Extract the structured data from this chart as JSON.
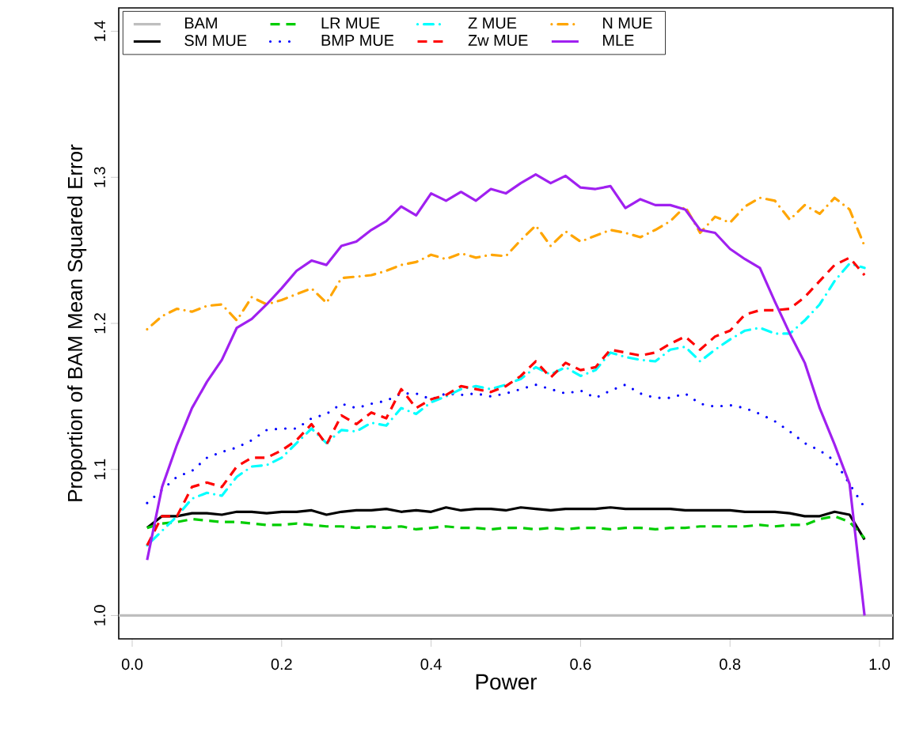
{
  "chart_data": {
    "type": "line",
    "xlabel": "Power",
    "ylabel": "Proportion of BAM Mean Squared Error",
    "x": [
      0.02,
      0.04,
      0.06,
      0.08,
      0.1,
      0.12,
      0.14,
      0.16,
      0.18,
      0.2,
      0.22,
      0.24,
      0.26,
      0.28,
      0.3,
      0.32,
      0.34,
      0.36,
      0.38,
      0.4,
      0.42,
      0.44,
      0.46,
      0.48,
      0.5,
      0.52,
      0.54,
      0.56,
      0.58,
      0.6,
      0.62,
      0.64,
      0.66,
      0.68,
      0.7,
      0.72,
      0.74,
      0.76,
      0.78,
      0.8,
      0.82,
      0.84,
      0.86,
      0.88,
      0.9,
      0.92,
      0.94,
      0.96,
      0.98
    ],
    "xlim": [
      -0.018,
      1.018
    ],
    "ylim": [
      0.984,
      1.416
    ],
    "xticks": [
      {
        "value": 0,
        "label": "0.0"
      },
      {
        "value": 0.2,
        "label": "0.2"
      },
      {
        "value": 0.4,
        "label": "0.4"
      },
      {
        "value": 0.6,
        "label": "0.6"
      },
      {
        "value": 0.8,
        "label": "0.8"
      },
      {
        "value": 1,
        "label": "1.0"
      }
    ],
    "yticks": [
      {
        "value": 1,
        "label": "1.0"
      },
      {
        "value": 1.1,
        "label": "1.1"
      },
      {
        "value": 1.2,
        "label": "1.2"
      },
      {
        "value": 1.3,
        "label": "1.3"
      },
      {
        "value": 1.4,
        "label": "1.4"
      }
    ],
    "grid": false,
    "legend": "top left",
    "series": [
      {
        "name": "BAM",
        "color": "#bebebe",
        "line_style": "solid",
        "x": [
          -0.018,
          1.018
        ],
        "values": [
          1.0,
          1.0
        ]
      },
      {
        "name": "SM MUE",
        "color": "#000000",
        "line_style": "solid",
        "values": [
          1.06,
          1.068,
          1.068,
          1.07,
          1.07,
          1.069,
          1.071,
          1.071,
          1.07,
          1.071,
          1.071,
          1.072,
          1.069,
          1.071,
          1.072,
          1.072,
          1.073,
          1.071,
          1.072,
          1.071,
          1.074,
          1.072,
          1.073,
          1.073,
          1.072,
          1.074,
          1.073,
          1.072,
          1.073,
          1.073,
          1.073,
          1.074,
          1.073,
          1.073,
          1.073,
          1.073,
          1.072,
          1.072,
          1.072,
          1.072,
          1.071,
          1.071,
          1.071,
          1.07,
          1.068,
          1.068,
          1.071,
          1.069,
          1.052
        ]
      },
      {
        "name": "LR MUE",
        "color": "#00cd00",
        "line_style": "dashed",
        "values": [
          1.06,
          1.063,
          1.064,
          1.066,
          1.065,
          1.064,
          1.064,
          1.063,
          1.062,
          1.062,
          1.063,
          1.062,
          1.061,
          1.061,
          1.06,
          1.061,
          1.06,
          1.061,
          1.059,
          1.06,
          1.061,
          1.06,
          1.06,
          1.059,
          1.06,
          1.06,
          1.059,
          1.06,
          1.059,
          1.06,
          1.06,
          1.059,
          1.06,
          1.06,
          1.059,
          1.06,
          1.06,
          1.061,
          1.061,
          1.061,
          1.061,
          1.062,
          1.061,
          1.062,
          1.062,
          1.066,
          1.068,
          1.064,
          1.053
        ]
      },
      {
        "name": "BMP MUE",
        "color": "#0000ff",
        "line_style": "dotted",
        "values": [
          1.077,
          1.086,
          1.095,
          1.099,
          1.108,
          1.112,
          1.115,
          1.12,
          1.127,
          1.128,
          1.128,
          1.135,
          1.138,
          1.145,
          1.142,
          1.145,
          1.147,
          1.152,
          1.152,
          1.148,
          1.152,
          1.151,
          1.152,
          1.15,
          1.152,
          1.155,
          1.158,
          1.155,
          1.152,
          1.154,
          1.149,
          1.154,
          1.158,
          1.152,
          1.149,
          1.149,
          1.152,
          1.145,
          1.143,
          1.144,
          1.142,
          1.138,
          1.133,
          1.126,
          1.118,
          1.113,
          1.106,
          1.09,
          1.074
        ]
      },
      {
        "name": "Z MUE",
        "color": "#00ffff",
        "line_style": "dashdot",
        "values": [
          1.048,
          1.058,
          1.068,
          1.08,
          1.084,
          1.082,
          1.095,
          1.102,
          1.103,
          1.108,
          1.118,
          1.128,
          1.118,
          1.127,
          1.126,
          1.132,
          1.13,
          1.142,
          1.138,
          1.146,
          1.15,
          1.155,
          1.157,
          1.155,
          1.158,
          1.162,
          1.17,
          1.165,
          1.17,
          1.164,
          1.168,
          1.18,
          1.177,
          1.175,
          1.174,
          1.182,
          1.184,
          1.174,
          1.182,
          1.189,
          1.195,
          1.197,
          1.193,
          1.193,
          1.202,
          1.213,
          1.229,
          1.241,
          1.238
        ]
      },
      {
        "name": "Zw MUE",
        "color": "#ff0000",
        "line_style": "dashed",
        "values": [
          1.048,
          1.068,
          1.068,
          1.088,
          1.091,
          1.088,
          1.102,
          1.108,
          1.108,
          1.113,
          1.12,
          1.131,
          1.117,
          1.137,
          1.131,
          1.139,
          1.135,
          1.155,
          1.142,
          1.148,
          1.151,
          1.157,
          1.155,
          1.153,
          1.157,
          1.164,
          1.174,
          1.163,
          1.173,
          1.168,
          1.17,
          1.182,
          1.18,
          1.178,
          1.18,
          1.186,
          1.191,
          1.182,
          1.191,
          1.195,
          1.206,
          1.209,
          1.209,
          1.21,
          1.218,
          1.229,
          1.24,
          1.245,
          1.233
        ]
      },
      {
        "name": "N MUE",
        "color": "#ffa500",
        "line_style": "dashdot",
        "values": [
          1.196,
          1.205,
          1.21,
          1.208,
          1.212,
          1.213,
          1.202,
          1.218,
          1.213,
          1.216,
          1.22,
          1.224,
          1.214,
          1.231,
          1.232,
          1.233,
          1.236,
          1.24,
          1.242,
          1.247,
          1.244,
          1.248,
          1.245,
          1.247,
          1.246,
          1.257,
          1.267,
          1.253,
          1.263,
          1.256,
          1.26,
          1.264,
          1.262,
          1.259,
          1.264,
          1.27,
          1.28,
          1.262,
          1.273,
          1.269,
          1.28,
          1.286,
          1.284,
          1.271,
          1.281,
          1.275,
          1.286,
          1.278,
          1.253
        ]
      },
      {
        "name": "MLE",
        "color": "#a020f0",
        "line_style": "solid",
        "values": [
          1.038,
          1.088,
          1.117,
          1.142,
          1.16,
          1.175,
          1.197,
          1.203,
          1.213,
          1.224,
          1.236,
          1.243,
          1.24,
          1.253,
          1.256,
          1.264,
          1.27,
          1.28,
          1.274,
          1.289,
          1.284,
          1.29,
          1.284,
          1.292,
          1.289,
          1.296,
          1.302,
          1.296,
          1.301,
          1.293,
          1.292,
          1.294,
          1.279,
          1.285,
          1.281,
          1.281,
          1.278,
          1.264,
          1.262,
          1.251,
          1.244,
          1.238,
          1.215,
          1.193,
          1.173,
          1.142,
          1.117,
          1.09,
          1.0
        ]
      }
    ]
  }
}
